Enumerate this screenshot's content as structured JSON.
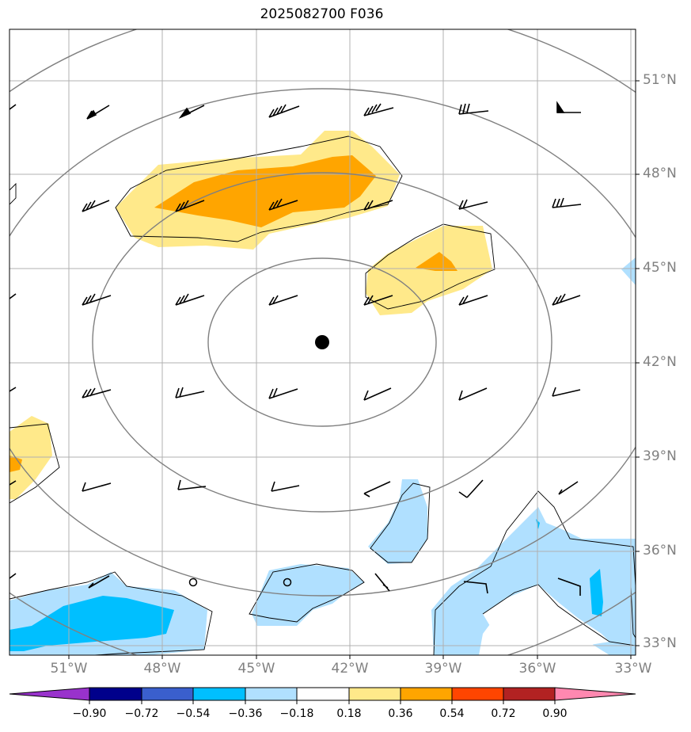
{
  "title": "2025082700 F036",
  "lat_labels": [
    "51°N",
    "48°N",
    "45°N",
    "42°N",
    "39°N",
    "36°N",
    "33°N"
  ],
  "lon_labels": [
    "51°W",
    "48°W",
    "45°W",
    "42°W",
    "39°W",
    "36°W",
    "33°W"
  ],
  "colorbar": {
    "labels": [
      "−0.90",
      "−0.72",
      "−0.54",
      "−0.36",
      "−0.18",
      "0.18",
      "0.36",
      "0.54",
      "0.72",
      "0.90"
    ],
    "colors": [
      "#9932cc",
      "#00008b",
      "#3a5fcd",
      "#00bfff",
      "#b0e0ff",
      "#ffffff",
      "#ffe98a",
      "#ffa500",
      "#ff4500",
      "#b22222",
      "#ff88b0"
    ]
  },
  "map": {
    "extent_lon": [
      -53,
      -33
    ],
    "extent_lat": [
      32.7,
      52.6
    ],
    "center_marker": "storm-center-dot",
    "wind_barbs": "black"
  }
}
